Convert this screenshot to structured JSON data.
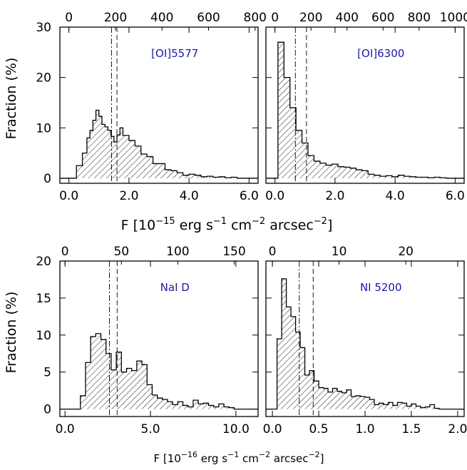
{
  "colors": {
    "label": "#1a1aa6",
    "ink": "#000000",
    "background": "#ffffff"
  },
  "rows": [
    {
      "ylabel": "Fraction (%)",
      "xlabel_main": "F [10",
      "xlabel_exp": "−15",
      "xlabel_rest": " erg s",
      "xlabel_s_exp": "−1",
      "xlabel_cm": " cm",
      "xlabel_cm_exp": "−2",
      "xlabel_arc": " arcsec",
      "xlabel_arc_exp": "−2",
      "xlabel_close": "]"
    },
    {
      "ylabel": "Fraction (%)",
      "xlabel_main": "F [10",
      "xlabel_exp": "−16",
      "xlabel_rest": " erg s",
      "xlabel_s_exp": "−1",
      "xlabel_cm": " cm",
      "xlabel_cm_exp": "−2",
      "xlabel_arc": " arcsec",
      "xlabel_arc_exp": "−2",
      "xlabel_close": "]"
    }
  ],
  "chart_data": [
    {
      "type": "bar",
      "label": "[OI]5577",
      "xlim": [
        -0.3,
        6.3
      ],
      "ylim": [
        -1,
        30
      ],
      "bottom_ticks": [
        "0.0",
        "2.0",
        "4.0",
        "6.0"
      ],
      "bottom_tick_values": [
        0,
        2,
        4,
        6
      ],
      "top_ticks": [
        "0",
        "200",
        "400",
        "600",
        "800"
      ],
      "top_tick_values": [
        0,
        1.55,
        3.1,
        4.65,
        6.2
      ],
      "left_ticks": [
        "0",
        "10",
        "20",
        "30"
      ],
      "left_tick_values": [
        0,
        10,
        20,
        30
      ],
      "bin_edges": [
        0.25,
        0.45,
        0.6,
        0.7,
        0.8,
        0.9,
        1.0,
        1.1,
        1.2,
        1.3,
        1.4,
        1.5,
        1.6,
        1.7,
        1.8,
        2.0,
        2.2,
        2.4,
        2.6,
        2.8,
        3.0,
        3.2,
        3.4,
        3.6,
        3.8,
        4.0,
        4.2,
        4.4,
        4.6,
        4.8,
        5.0,
        5.2,
        5.4,
        5.6,
        5.8,
        6.0
      ],
      "values": [
        2.5,
        5,
        8,
        9.5,
        11.5,
        13.5,
        12.3,
        10.7,
        10.2,
        9.5,
        8.3,
        7.2,
        8.6,
        10,
        8.5,
        7.5,
        6.4,
        4.8,
        4.3,
        2.9,
        2.9,
        1.7,
        1.5,
        1.1,
        0.6,
        0.8,
        0.6,
        0.3,
        0.4,
        0.2,
        0.3,
        0.1,
        0.2,
        0,
        0
      ],
      "vline_dashdot": 1.42,
      "vline_dashed": 1.6
    },
    {
      "type": "bar",
      "label": "[OI]6300",
      "xlim": [
        -0.3,
        6.3
      ],
      "ylim": [
        -1,
        30
      ],
      "bottom_ticks": [
        "0.0",
        "2.0",
        "4.0",
        "6.0"
      ],
      "bottom_tick_values": [
        0,
        2,
        4,
        6
      ],
      "top_ticks": [
        "0",
        "200",
        "400",
        "600",
        "800",
        "1000"
      ],
      "top_tick_values": [
        0,
        1.2,
        2.4,
        3.6,
        4.8,
        6.0
      ],
      "left_ticks": [
        "0",
        "10",
        "20",
        "30"
      ],
      "left_tick_values": [
        0,
        10,
        20,
        30
      ],
      "bin_edges": [
        0.1,
        0.3,
        0.5,
        0.7,
        0.9,
        1.1,
        1.3,
        1.5,
        1.7,
        1.9,
        2.1,
        2.3,
        2.5,
        2.7,
        2.9,
        3.1,
        3.3,
        3.5,
        3.7,
        3.9,
        4.1,
        4.3,
        4.5,
        4.7,
        4.9,
        5.1,
        5.3,
        5.5,
        5.7,
        5.9,
        6.1
      ],
      "values": [
        27,
        20,
        14,
        9.5,
        7,
        4.5,
        3.4,
        3,
        2.6,
        2.8,
        2.3,
        2.2,
        2.0,
        1.7,
        1.5,
        0.8,
        0.6,
        0.4,
        0.5,
        0.3,
        0.6,
        0.4,
        0.3,
        0.2,
        0.2,
        0.1,
        0.2,
        0.1,
        0,
        0
      ],
      "vline_dashdot": 0.68,
      "vline_dashed": 1.05
    },
    {
      "type": "bar",
      "label": "NaI D",
      "xlim": [
        -0.3,
        11.3
      ],
      "ylim": [
        -1,
        20
      ],
      "bottom_ticks": [
        "0.0",
        "5.0",
        "10.0"
      ],
      "bottom_tick_values": [
        0,
        5,
        10
      ],
      "top_ticks": [
        "0",
        "50",
        "100",
        "150"
      ],
      "top_tick_values": [
        0,
        3.3,
        6.6,
        9.9
      ],
      "left_ticks": [
        "0",
        "5",
        "10",
        "15",
        "20"
      ],
      "left_tick_values": [
        0,
        5,
        10,
        15,
        20
      ],
      "bin_edges": [
        0.9,
        1.2,
        1.5,
        1.8,
        2.1,
        2.4,
        2.7,
        3.0,
        3.3,
        3.6,
        3.9,
        4.2,
        4.5,
        4.8,
        5.1,
        5.4,
        5.7,
        6.0,
        6.3,
        6.6,
        6.9,
        7.2,
        7.5,
        7.8,
        8.1,
        8.4,
        8.7,
        9.0,
        9.3,
        9.6,
        9.9,
        10.2,
        10.5,
        10.8
      ],
      "values": [
        1.8,
        6.3,
        9.8,
        10.2,
        9.4,
        7.5,
        5.3,
        7.7,
        5.0,
        5.5,
        5.2,
        6.5,
        6.0,
        3.3,
        1.9,
        1.5,
        1.3,
        1.0,
        0.6,
        1.0,
        0.5,
        0.3,
        1.2,
        0.7,
        0.8,
        0.5,
        0.3,
        0.7,
        0.3,
        0.2,
        0,
        0,
        0
      ],
      "vline_dashdot": 2.6,
      "vline_dashed": 3.05
    },
    {
      "type": "bar",
      "label": "NI 5200",
      "xlim": [
        -0.07,
        2.07
      ],
      "ylim": [
        -1,
        20
      ],
      "bottom_ticks": [
        "0.0",
        "0.5",
        "1.0",
        "1.5",
        "2.0"
      ],
      "bottom_tick_values": [
        0,
        0.5,
        1.0,
        1.5,
        2.0
      ],
      "top_ticks": [
        "0",
        "10",
        "20"
      ],
      "top_tick_values": [
        0,
        0.72,
        1.44
      ],
      "left_ticks": [
        "0",
        "5",
        "10",
        "15",
        "20"
      ],
      "left_tick_values": [
        0,
        5,
        10,
        15,
        20
      ],
      "bin_edges": [
        0.05,
        0.1,
        0.15,
        0.2,
        0.25,
        0.3,
        0.35,
        0.4,
        0.45,
        0.5,
        0.55,
        0.6,
        0.65,
        0.7,
        0.75,
        0.8,
        0.85,
        0.9,
        0.95,
        1.0,
        1.05,
        1.1,
        1.15,
        1.2,
        1.25,
        1.3,
        1.35,
        1.4,
        1.45,
        1.5,
        1.55,
        1.6,
        1.65,
        1.7,
        1.75,
        1.8
      ],
      "values": [
        9.5,
        17.6,
        13.8,
        12.5,
        10.4,
        8.3,
        4.6,
        5.2,
        3.8,
        2.9,
        2.8,
        2.3,
        2.8,
        2.4,
        2.2,
        2.6,
        1.7,
        1.8,
        1.7,
        1.6,
        1.3,
        0.6,
        0.8,
        0.6,
        0.9,
        0.5,
        0.9,
        0.8,
        0.4,
        0.7,
        0.4,
        0.2,
        0.3,
        0.6,
        0.1
      ],
      "vline_dashdot": 0.29,
      "vline_dashed": 0.44
    }
  ]
}
